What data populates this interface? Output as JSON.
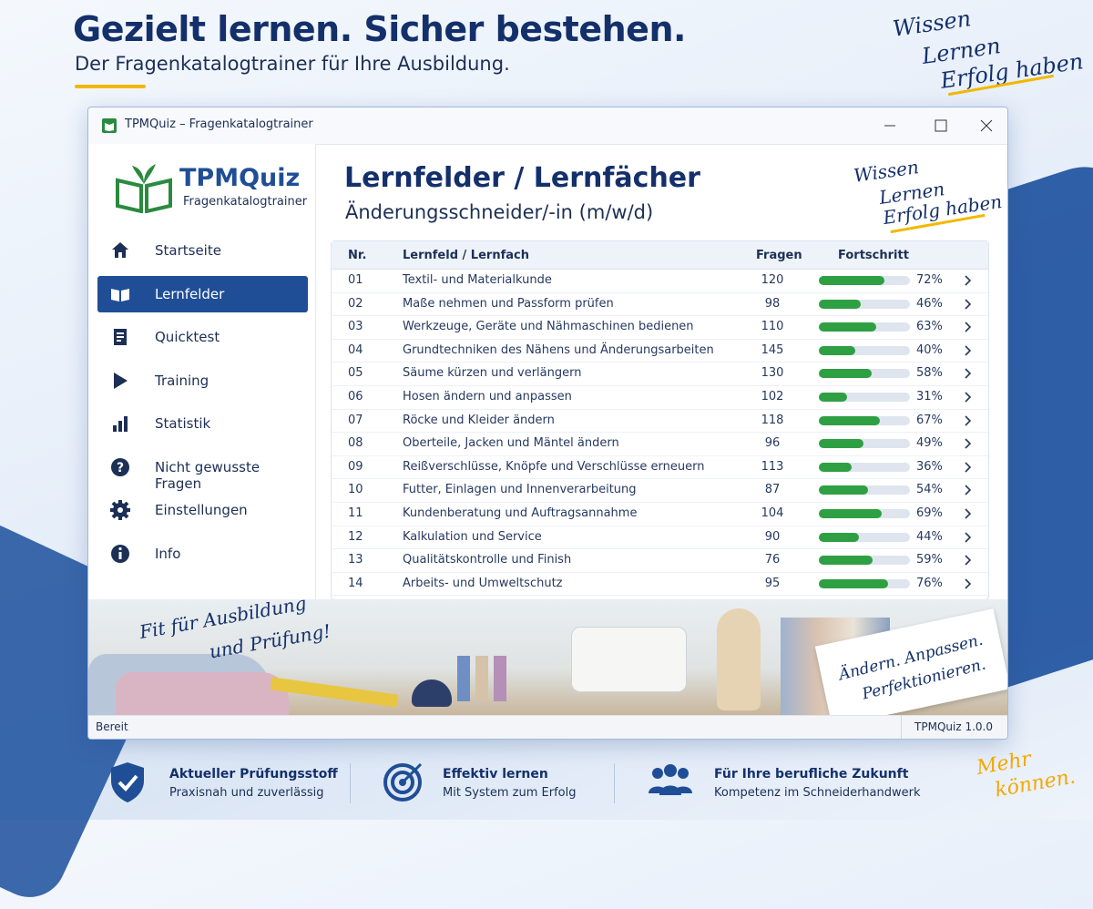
{
  "header": {
    "title": "Gezielt lernen. Sicher bestehen.",
    "subtitle": "Der Fragenkatalogtrainer für Ihre Ausbildung."
  },
  "slogan": [
    "Wissen",
    "Lernen",
    "Erfolg haben"
  ],
  "window": {
    "title": "TPMQuiz – Fragenkatalogtrainer"
  },
  "sidebar": {
    "logo": "TPMQuiz",
    "logo_subtitle": "Fragenkatalogtrainer",
    "active": 1,
    "items": [
      "Startseite",
      "Lernfelder",
      "Quicktest",
      "Training",
      "Statistik",
      "Nicht gewusste Fragen",
      "Einstellungen",
      "Info"
    ]
  },
  "content": {
    "title": "Lernfelder / Lernfächer",
    "subtitle": "Änderungsschneider/-in (m/w/d)",
    "slogan": [
      "Wissen",
      "Lernen",
      "Erfolg haben"
    ],
    "table": {
      "columns": [
        "Nr.",
        "Lernfeld / Lernfach",
        "Fragen",
        "Fortschritt"
      ],
      "rows": [
        {
          "nr": "01",
          "name": "Textil- und Materialkunde",
          "questions": 120,
          "progress": 72,
          "progress_label": "72%"
        },
        {
          "nr": "02",
          "name": "Maße nehmen und Passform prüfen",
          "questions": 98,
          "progress": 46,
          "progress_label": "46%"
        },
        {
          "nr": "03",
          "name": "Werkzeuge, Geräte und Nähmaschinen bedienen",
          "questions": 110,
          "progress": 63,
          "progress_label": "63%"
        },
        {
          "nr": "04",
          "name": "Grundtechniken des Nähens und Änderungsarbeiten",
          "questions": 145,
          "progress": 40,
          "progress_label": "40%"
        },
        {
          "nr": "05",
          "name": "Säume kürzen und verlängern",
          "questions": 130,
          "progress": 58,
          "progress_label": "58%"
        },
        {
          "nr": "06",
          "name": "Hosen ändern und anpassen",
          "questions": 102,
          "progress": 31,
          "progress_label": "31%"
        },
        {
          "nr": "07",
          "name": "Röcke und Kleider ändern",
          "questions": 118,
          "progress": 67,
          "progress_label": "67%"
        },
        {
          "nr": "08",
          "name": "Oberteile, Jacken und Mäntel ändern",
          "questions": 96,
          "progress": 49,
          "progress_label": "49%"
        },
        {
          "nr": "09",
          "name": "Reißverschlüsse, Knöpfe und Verschlüsse erneuern",
          "questions": 113,
          "progress": 36,
          "progress_label": "36%"
        },
        {
          "nr": "10",
          "name": "Futter, Einlagen und Innenverarbeitung",
          "questions": 87,
          "progress": 54,
          "progress_label": "54%"
        },
        {
          "nr": "11",
          "name": "Kundenberatung und Auftragsannahme",
          "questions": 104,
          "progress": 69,
          "progress_label": "69%"
        },
        {
          "nr": "12",
          "name": "Kalkulation und Service",
          "questions": 90,
          "progress": 44,
          "progress_label": "44%"
        },
        {
          "nr": "13",
          "name": "Qualitätskontrolle und Finish",
          "questions": 76,
          "progress": 59,
          "progress_label": "59%"
        },
        {
          "nr": "14",
          "name": "Arbeits- und Umweltschutz",
          "questions": 95,
          "progress": 76,
          "progress_label": "76%"
        }
      ]
    }
  },
  "banner": {
    "left": [
      "Fit für Ausbildung",
      "und Prüfung!"
    ],
    "right": [
      "Ändern. Anpassen.",
      "Perfektionieren."
    ]
  },
  "statusbar": {
    "left": "Bereit",
    "right": "TPMQuiz 1.0.0"
  },
  "features": [
    {
      "title": "Aktueller Prüfungsstoff",
      "subtitle": "Praxisnah und zuverlässig"
    },
    {
      "title": "Effektiv lernen",
      "subtitle": "Mit System zum Erfolg"
    },
    {
      "title": "Für Ihre berufliche Zukunft",
      "subtitle": "Kompetenz im Schneiderhandwerk"
    }
  ],
  "corner": [
    "Mehr",
    "können."
  ]
}
